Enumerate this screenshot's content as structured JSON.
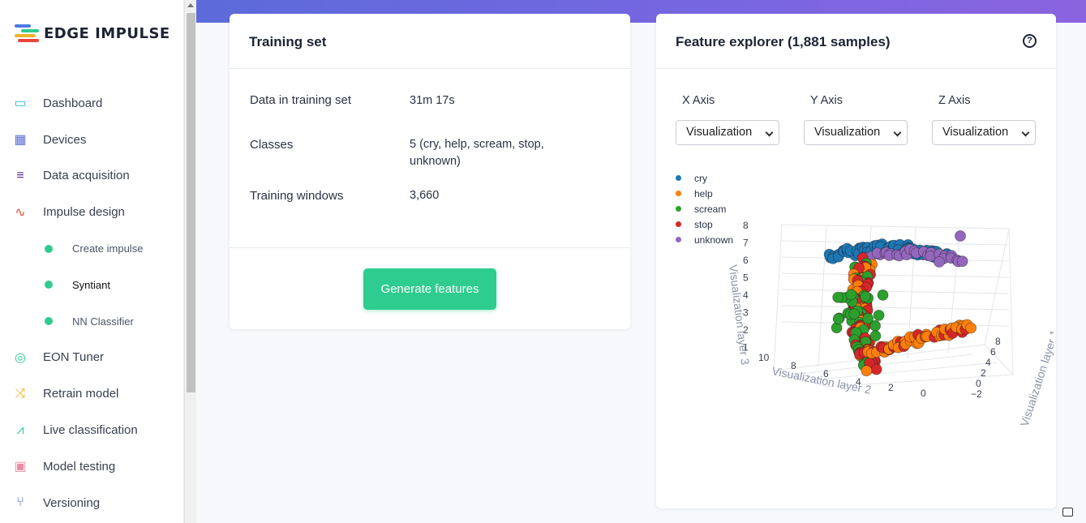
{
  "brand": {
    "name": "EDGE IMPULSE"
  },
  "sidebar": {
    "items": [
      {
        "label": "Dashboard",
        "icon": "monitor-icon",
        "color": "#2bb7d9"
      },
      {
        "label": "Devices",
        "icon": "chip-icon",
        "color": "#5a6bd8"
      },
      {
        "label": "Data acquisition",
        "icon": "database-icon",
        "color": "#5b2b8a"
      },
      {
        "label": "Impulse design",
        "icon": "pulse-icon",
        "color": "#e8453c"
      },
      {
        "label": "Create impulse",
        "sub": true
      },
      {
        "label": "Syntiant",
        "sub": true,
        "active": true
      },
      {
        "label": "NN Classifier",
        "sub": true
      },
      {
        "label": "EON Tuner",
        "icon": "compass-icon",
        "color": "#2ecc8f"
      },
      {
        "label": "Retrain model",
        "icon": "shuffle-icon",
        "color": "#f0b429"
      },
      {
        "label": "Live classification",
        "icon": "nodes-icon",
        "color": "#2ecc8f"
      },
      {
        "label": "Model testing",
        "icon": "clipboard-check-icon",
        "color": "#f08aa3"
      },
      {
        "label": "Versioning",
        "icon": "git-branch-icon",
        "color": "#5a6bd8"
      }
    ]
  },
  "training_set": {
    "title": "Training set",
    "rows": [
      {
        "label": "Data in training set",
        "value": "31m 17s"
      },
      {
        "label": "Classes",
        "value": "5 (cry, help, scream, stop, unknown)"
      },
      {
        "label": "Training windows",
        "value": "3,660"
      }
    ],
    "button": "Generate features"
  },
  "feature_explorer": {
    "title": "Feature explorer (1,881 samples)",
    "x_axis": {
      "label": "X Axis",
      "value": "Visualization"
    },
    "y_axis": {
      "label": "Y Axis",
      "value": "Visualization"
    },
    "z_axis": {
      "label": "Z Axis",
      "value": "Visualization"
    },
    "legend": [
      {
        "name": "cry",
        "color": "#1f77b4"
      },
      {
        "name": "help",
        "color": "#ff7f0e"
      },
      {
        "name": "scream",
        "color": "#2ca02c"
      },
      {
        "name": "stop",
        "color": "#d62728"
      },
      {
        "name": "unknown",
        "color": "#9467bd"
      }
    ],
    "axis_titles": {
      "z": "Visualization layer 3",
      "y": "Visualization layer 2",
      "x": "Visualization layer 1"
    },
    "z_ticks": [
      "8",
      "7",
      "6",
      "5",
      "4",
      "3",
      "2",
      "1"
    ],
    "y_ticks": [
      "10",
      "8",
      "6",
      "4",
      "2",
      "0"
    ],
    "x_ticks": [
      "8",
      "6",
      "4",
      "2",
      "0",
      "−2"
    ]
  }
}
